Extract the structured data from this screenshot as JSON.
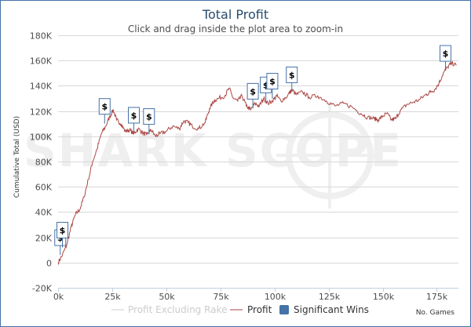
{
  "chart_data": {
    "type": "line",
    "title": "Total Profit",
    "subtitle": "Click and drag inside the plot area to zoom-in",
    "ylabel": "Cumulative Total (USD)",
    "xlabel": "No. Games",
    "xlim": [
      0,
      185000
    ],
    "ylim": [
      -20000,
      180000
    ],
    "x_ticks": [
      0,
      25000,
      50000,
      75000,
      100000,
      125000,
      150000,
      175000
    ],
    "x_tick_labels": [
      "0k",
      "25k",
      "50k",
      "75k",
      "100k",
      "125k",
      "150k",
      "175k"
    ],
    "y_ticks": [
      -20000,
      0,
      20000,
      40000,
      60000,
      80000,
      100000,
      120000,
      140000,
      160000,
      180000
    ],
    "y_tick_labels": [
      "-20K",
      "0",
      "20K",
      "40K",
      "60K",
      "80K",
      "100K",
      "120K",
      "140K",
      "160K",
      "180K"
    ],
    "grid": "horizontal",
    "legend_position": "bottom",
    "series": [
      {
        "name": "Profit Excluding Rake",
        "color": "#cccccc",
        "visible": false,
        "points": []
      },
      {
        "name": "Profit",
        "color": "#aa4643",
        "visible": true,
        "points": [
          [
            0,
            0
          ],
          [
            2000,
            6000
          ],
          [
            4000,
            14000
          ],
          [
            6000,
            28000
          ],
          [
            8000,
            38000
          ],
          [
            10000,
            42000
          ],
          [
            12000,
            52000
          ],
          [
            14000,
            66000
          ],
          [
            16000,
            80000
          ],
          [
            18000,
            90000
          ],
          [
            20000,
            102000
          ],
          [
            22000,
            108000
          ],
          [
            24000,
            116000
          ],
          [
            25500,
            121000
          ],
          [
            27000,
            113000
          ],
          [
            29000,
            110000
          ],
          [
            31000,
            104000
          ],
          [
            33000,
            105000
          ],
          [
            35000,
            102000
          ],
          [
            37000,
            106000
          ],
          [
            39000,
            103000
          ],
          [
            41000,
            101000
          ],
          [
            43000,
            105000
          ],
          [
            45000,
            100000
          ],
          [
            47000,
            102000
          ],
          [
            50000,
            104000
          ],
          [
            53000,
            108000
          ],
          [
            56000,
            106000
          ],
          [
            58000,
            112000
          ],
          [
            60000,
            111000
          ],
          [
            62000,
            108000
          ],
          [
            65000,
            106000
          ],
          [
            68000,
            111000
          ],
          [
            70000,
            122000
          ],
          [
            72000,
            128000
          ],
          [
            74000,
            130000
          ],
          [
            77000,
            132000
          ],
          [
            79000,
            138000
          ],
          [
            81000,
            130000
          ],
          [
            83000,
            128000
          ],
          [
            85000,
            132000
          ],
          [
            87000,
            124000
          ],
          [
            89000,
            121000
          ],
          [
            91000,
            126000
          ],
          [
            93000,
            124000
          ],
          [
            95000,
            130000
          ],
          [
            97000,
            126000
          ],
          [
            99000,
            128000
          ],
          [
            101000,
            132000
          ],
          [
            103000,
            128000
          ],
          [
            106000,
            132000
          ],
          [
            108000,
            137000
          ],
          [
            110000,
            133000
          ],
          [
            113000,
            135000
          ],
          [
            116000,
            131000
          ],
          [
            120000,
            132000
          ],
          [
            124000,
            128000
          ],
          [
            128000,
            124000
          ],
          [
            132000,
            126000
          ],
          [
            136000,
            123000
          ],
          [
            140000,
            118000
          ],
          [
            143000,
            115000
          ],
          [
            146000,
            114000
          ],
          [
            148000,
            113000
          ],
          [
            150000,
            116000
          ],
          [
            152000,
            118000
          ],
          [
            154000,
            113000
          ],
          [
            156000,
            114000
          ],
          [
            158000,
            120000
          ],
          [
            161000,
            125000
          ],
          [
            164000,
            127000
          ],
          [
            167000,
            129000
          ],
          [
            170000,
            133000
          ],
          [
            172000,
            135000
          ],
          [
            174000,
            137000
          ],
          [
            176000,
            142000
          ],
          [
            178000,
            150000
          ],
          [
            180000,
            155000
          ],
          [
            182000,
            158000
          ],
          [
            184000,
            156000
          ]
        ]
      }
    ],
    "flags": {
      "name": "Significant Wins",
      "color": "#4572a7",
      "label": "$",
      "items": [
        {
          "x": 1000,
          "y": 6000
        },
        {
          "x": 2000,
          "y": 12000
        },
        {
          "x": 21500,
          "y": 110000
        },
        {
          "x": 35000,
          "y": 103000
        },
        {
          "x": 42000,
          "y": 102000
        },
        {
          "x": 90000,
          "y": 122000
        },
        {
          "x": 96000,
          "y": 127000
        },
        {
          "x": 99000,
          "y": 130000
        },
        {
          "x": 108000,
          "y": 135000
        },
        {
          "x": 179000,
          "y": 152000
        }
      ]
    }
  },
  "watermark": "SHARK SCOPE"
}
